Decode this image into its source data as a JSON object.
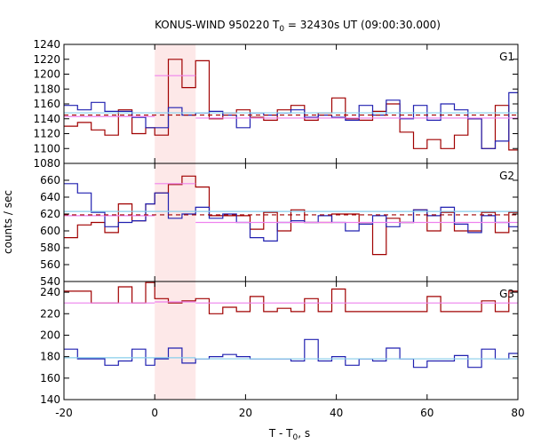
{
  "chart_data": {
    "type": "line",
    "title": "KONUS-WIND 950220 T",
    "title_sub": "0",
    "title_rest": " = 32430s UT (09:00:30.000)",
    "xlabel": "T - T",
    "xlabel_sub": "0",
    "xlabel_rest": ", s",
    "ylabel": "counts / sec",
    "xlim": [
      -20,
      80
    ],
    "x_ticks": [
      -20,
      0,
      20,
      40,
      60,
      80
    ],
    "x_tick_labels": [
      "-20",
      "0",
      "20",
      "40",
      "60",
      "80"
    ],
    "highlight": {
      "x_start": 0,
      "x_end": 9,
      "color": "#fde8e8"
    },
    "colors": {
      "dark_red": "#a00000",
      "blue": "#2020b0",
      "pink": "#ee82ee",
      "cyan": "#87ceeb",
      "axis": "#000000"
    },
    "panels": [
      {
        "label": "G1",
        "ylim": [
          1080,
          1240
        ],
        "y_ticks": [
          1080,
          1100,
          1120,
          1140,
          1160,
          1180,
          1200,
          1220,
          1240
        ],
        "y_tick_labels": [
          "1080",
          "1100",
          "1120",
          "1140",
          "1160",
          "1180",
          "1200",
          "1220",
          "1240"
        ],
        "series": [
          {
            "color": "#a00000",
            "x": [
              -20,
              -17,
              -14,
              -11,
              -8,
              -5,
              -2,
              0,
              3,
              6,
              9,
              12,
              15,
              18,
              21,
              24,
              27,
              30,
              33,
              36,
              39,
              42,
              45,
              48,
              51,
              54,
              57,
              60,
              63,
              66,
              69,
              72,
              75,
              78
            ],
            "values": [
              1130,
              1135,
              1125,
              1118,
              1152,
              1120,
              1128,
              1118,
              1220,
              1182,
              1218,
              1140,
              1148,
              1152,
              1142,
              1138,
              1152,
              1158,
              1138,
              1148,
              1168,
              1140,
              1138,
              1150,
              1160,
              1122,
              1100,
              1112,
              1100,
              1118,
              1140,
              1100,
              1158,
              1098
            ]
          },
          {
            "color": "#2020b0",
            "x": [
              -20,
              -17,
              -14,
              -11,
              -8,
              -5,
              -2,
              0,
              3,
              6,
              9,
              12,
              15,
              18,
              21,
              24,
              27,
              30,
              33,
              36,
              39,
              42,
              45,
              48,
              51,
              54,
              57,
              60,
              63,
              66,
              69,
              72,
              75,
              78
            ],
            "values": [
              1158,
              1152,
              1162,
              1150,
              1150,
              1142,
              1128,
              1128,
              1155,
              1145,
              1148,
              1150,
              1145,
              1128,
              1148,
              1145,
              1148,
              1152,
              1142,
              1145,
              1142,
              1138,
              1158,
              1145,
              1165,
              1140,
              1158,
              1138,
              1160,
              1152,
              1140,
              1100,
              1110,
              1175
            ]
          },
          {
            "color": "#ee82ee",
            "segments": [
              {
                "x": [
                  -20,
                  0
                ],
                "y": [
                  1143,
                  1143
                ]
              },
              {
                "x": [
                  0,
                  9
                ],
                "y": [
                  1198,
                  1198
                ]
              },
              {
                "x": [
                  9,
                  80
                ],
                "y": [
                  1141,
                  1141
                ]
              }
            ]
          },
          {
            "color": "#87ceeb",
            "segments": [
              {
                "x": [
                  -20,
                  80
                ],
                "y": [
                  1148,
                  1148
                ]
              }
            ]
          },
          {
            "color": "#a00000",
            "dashed": true,
            "segments": [
              {
                "x": [
                  -20,
                  80
                ],
                "y": [
                  1145,
                  1145
                ]
              }
            ]
          }
        ]
      },
      {
        "label": "G2",
        "ylim": [
          540,
          680
        ],
        "y_ticks": [
          540,
          560,
          580,
          600,
          620,
          640,
          660
        ],
        "y_tick_labels": [
          "540",
          "560",
          "580",
          "600",
          "620",
          "640",
          "660"
        ],
        "series": [
          {
            "color": "#a00000",
            "x": [
              -20,
              -17,
              -14,
              -11,
              -8,
              -5,
              -2,
              0,
              3,
              6,
              9,
              12,
              15,
              18,
              21,
              24,
              27,
              30,
              33,
              36,
              39,
              42,
              45,
              48,
              51,
              54,
              57,
              60,
              63,
              66,
              69,
              72,
              75,
              78
            ],
            "values": [
              592,
              607,
              610,
              598,
              632,
              612,
              632,
              645,
              655,
              665,
              652,
              618,
              618,
              618,
              602,
              622,
              600,
              625,
              610,
              610,
              620,
              620,
              608,
              572,
              615,
              610,
              625,
              600,
              622,
              600,
              600,
              622,
              598,
              622
            ]
          },
          {
            "color": "#2020b0",
            "x": [
              -20,
              -17,
              -14,
              -11,
              -8,
              -5,
              -2,
              0,
              3,
              6,
              9,
              12,
              15,
              18,
              21,
              24,
              27,
              30,
              33,
              36,
              39,
              42,
              45,
              48,
              51,
              54,
              57,
              60,
              63,
              66,
              69,
              72,
              75,
              78
            ],
            "values": [
              656,
              645,
              622,
              605,
              610,
              612,
              632,
              645,
              615,
              620,
              628,
              615,
              620,
              610,
              592,
              588,
              610,
              612,
              610,
              618,
              610,
              600,
              608,
              618,
              605,
              610,
              625,
              618,
              628,
              608,
              598,
              618,
              610,
              605
            ]
          },
          {
            "color": "#ee82ee",
            "segments": [
              {
                "x": [
                  -20,
                  0
                ],
                "y": [
                  618,
                  618
                ]
              },
              {
                "x": [
                  0,
                  9
                ],
                "y": [
                  656,
                  656
                ]
              },
              {
                "x": [
                  9,
                  80
                ],
                "y": [
                  610,
                  610
                ]
              }
            ]
          },
          {
            "color": "#87ceeb",
            "segments": [
              {
                "x": [
                  -20,
                  80
                ],
                "y": [
                  623,
                  623
                ]
              }
            ]
          },
          {
            "color": "#a00000",
            "dashed": true,
            "segments": [
              {
                "x": [
                  -20,
                  80
                ],
                "y": [
                  619,
                  619
                ]
              }
            ]
          }
        ]
      },
      {
        "label": "G3",
        "ylim": [
          140,
          250
        ],
        "y_ticks": [
          140,
          160,
          180,
          200,
          220,
          240
        ],
        "y_tick_labels": [
          "140",
          "160",
          "180",
          "200",
          "220",
          "240"
        ],
        "series": [
          {
            "color": "#a00000",
            "x": [
              -20,
              -17,
              -14,
              -11,
              -8,
              -5,
              -2,
              0,
              3,
              6,
              9,
              12,
              15,
              18,
              21,
              24,
              27,
              30,
              33,
              36,
              39,
              42,
              45,
              48,
              51,
              54,
              57,
              60,
              63,
              66,
              69,
              72,
              75,
              78
            ],
            "values": [
              241,
              241,
              230,
              230,
              245,
              230,
              249,
              234,
              230,
              232,
              234,
              220,
              226,
              222,
              236,
              222,
              225,
              222,
              234,
              222,
              243,
              222,
              222,
              222,
              222,
              222,
              222,
              236,
              222,
              222,
              222,
              232,
              222,
              241
            ]
          },
          {
            "color": "#2020b0",
            "x": [
              -20,
              -17,
              -14,
              -11,
              -8,
              -5,
              -2,
              0,
              3,
              6,
              9,
              12,
              15,
              18,
              21,
              24,
              27,
              30,
              33,
              36,
              39,
              42,
              45,
              48,
              51,
              54,
              57,
              60,
              63,
              66,
              69,
              72,
              75,
              78
            ],
            "values": [
              187,
              178,
              178,
              172,
              176,
              187,
              172,
              178,
              188,
              174,
              178,
              180,
              182,
              180,
              178,
              178,
              178,
              176,
              196,
              176,
              180,
              172,
              178,
              176,
              188,
              178,
              170,
              176,
              176,
              181,
              170,
              187,
              178,
              183
            ]
          },
          {
            "color": "#ee82ee",
            "segments": [
              {
                "x": [
                  -20,
                  0
                ],
                "y": [
                  230,
                  230
                ]
              },
              {
                "x": [
                  0,
                  9
                ],
                "y": [
                  231,
                  231
                ]
              },
              {
                "x": [
                  9,
                  80
                ],
                "y": [
                  230,
                  230
                ]
              }
            ]
          },
          {
            "color": "#87ceeb",
            "segments": [
              {
                "x": [
                  -20,
                  0
                ],
                "y": [
                  179,
                  179
                ]
              },
              {
                "x": [
                  0,
                  9
                ],
                "y": [
                  179,
                  179
                ]
              },
              {
                "x": [
                  9,
                  80
                ],
                "y": [
                  178,
                  178
                ]
              }
            ]
          }
        ]
      }
    ]
  }
}
